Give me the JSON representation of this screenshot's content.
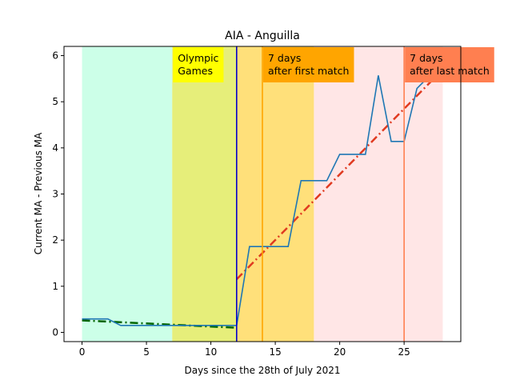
{
  "chart_data": {
    "type": "line",
    "title": "AIA - Anguilla",
    "xlabel": "Days since the 28th of July 2021",
    "ylabel": "Current MA - Previous MA",
    "xlim": [
      -1.4,
      29.4
    ],
    "ylim": [
      -0.2,
      6.2
    ],
    "xticks": [
      0,
      5,
      10,
      15,
      20,
      25
    ],
    "yticks": [
      0,
      1,
      2,
      3,
      4,
      5,
      6
    ],
    "grid": false,
    "series": [
      {
        "values_x": [
          0,
          1,
          2,
          3,
          4,
          5,
          6,
          7,
          8,
          9,
          10,
          11,
          12,
          13,
          14,
          15,
          16,
          17,
          18,
          19,
          20,
          21,
          22,
          23,
          24,
          25,
          26,
          27,
          28
        ],
        "values_y": [
          0.29,
          0.29,
          0.29,
          0.15,
          0.15,
          0.15,
          0.15,
          0.15,
          0.15,
          0.15,
          0.15,
          0.15,
          0.15,
          1.86,
          1.86,
          1.86,
          1.86,
          3.29,
          3.29,
          3.29,
          3.86,
          3.86,
          3.86,
          5.57,
          4.14,
          4.14,
          5.29,
          5.57,
          5.57
        ],
        "color": "#1f77b4"
      }
    ],
    "trendlines": [
      {
        "x": [
          0,
          12
        ],
        "y": [
          0.26,
          0.1
        ],
        "color": "#006400"
      },
      {
        "x": [
          12,
          28
        ],
        "y": [
          1.15,
          5.7
        ],
        "color": "#e03a20"
      }
    ],
    "regions": [
      {
        "x": [
          0,
          7
        ],
        "color": "#ccffe8"
      },
      {
        "x": [
          7,
          12
        ],
        "color": "#e6ee7a"
      },
      {
        "x": [
          12,
          18
        ],
        "color": "#ffe07a"
      },
      {
        "x": [
          18,
          28
        ],
        "color": "#ffe6e6"
      }
    ],
    "vlines": [
      {
        "x": 12,
        "color": "#0000cc"
      },
      {
        "x": 14,
        "color": "#ffa500"
      },
      {
        "x": 25,
        "color": "#ff7f50"
      }
    ],
    "annotations": [
      {
        "x": 7,
        "text_lines": [
          "Olympic",
          "Games"
        ],
        "bg": "#ffff00"
      },
      {
        "x": 14,
        "text_lines": [
          "7 days",
          "after first match"
        ],
        "bg": "#ffa500"
      },
      {
        "x": 25,
        "text_lines": [
          "7 days",
          "after last match"
        ],
        "bg": "#ff7f50"
      }
    ]
  }
}
